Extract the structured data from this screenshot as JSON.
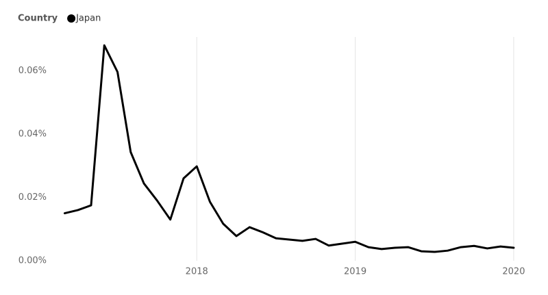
{
  "chart_data": {
    "type": "line",
    "legend_title": "Country",
    "legend_position": "top-left",
    "x": [
      2017.1667,
      2017.25,
      2017.3333,
      2017.4167,
      2017.5,
      2017.5833,
      2017.6667,
      2017.75,
      2017.8333,
      2017.9167,
      2018,
      2018.0833,
      2018.1667,
      2018.25,
      2018.3333,
      2018.4167,
      2018.5,
      2018.5833,
      2018.6667,
      2018.75,
      2018.8333,
      2018.9167,
      2019,
      2019.0833,
      2019.1667,
      2019.25,
      2019.3333,
      2019.4167,
      2019.5,
      2019.5833,
      2019.6667,
      2019.75,
      2019.8333,
      2019.9167,
      2020
    ],
    "series": [
      {
        "name": "Japan",
        "color": "#000000",
        "values": [
          0.015,
          0.016,
          0.0175,
          0.068,
          0.0596,
          0.0343,
          0.0244,
          0.019,
          0.013,
          0.026,
          0.0298,
          0.0186,
          0.0117,
          0.0078,
          0.0106,
          0.009,
          0.0071,
          0.0067,
          0.0063,
          0.0069,
          0.0048,
          0.0054,
          0.006,
          0.0043,
          0.0037,
          0.0041,
          0.0043,
          0.003,
          0.0028,
          0.0032,
          0.0043,
          0.0047,
          0.0039,
          0.0045,
          0.0041
        ]
      }
    ],
    "xlim": [
      2017.1,
      2020.05
    ],
    "xticks": [
      2018,
      2019,
      2020
    ],
    "ylim": [
      0,
      0.07
    ],
    "yticks": [
      {
        "value": 0,
        "label": "0.00%"
      },
      {
        "value": 0.02,
        "label": "0.02%"
      },
      {
        "value": 0.04,
        "label": "0.04%"
      },
      {
        "value": 0.06,
        "label": "0.06%"
      }
    ],
    "x_grid": true
  }
}
